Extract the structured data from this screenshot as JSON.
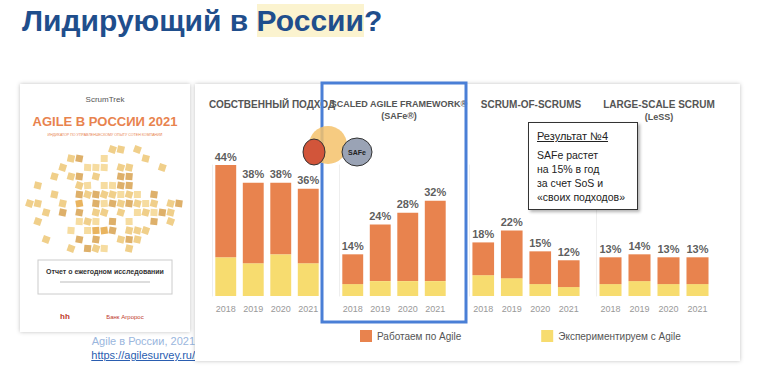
{
  "slide": {
    "title": "Лидирующий в России?",
    "title_highlight": "России",
    "cover": {
      "brand": "ScrumTrek",
      "heading": "AGILE В РОССИИ 2021",
      "tagline": "ИНДИКАТОР ПО УПРАВЛЕНЧЕСКОМУ ОПЫТУ СОТЕН КОМПАНИЙ",
      "report": "Отчет о ежегодном исследовании",
      "sponsors": [
        "hh",
        "Банк Агророс"
      ]
    },
    "caption": "Agile в России, 2021",
    "link": "https://agilesurvey.ru/",
    "callout": {
      "heading": "Результат №4",
      "lines": [
        "SAFe растет",
        "на 15% в год",
        "за счет SoS и",
        "«своих подходов»"
      ]
    },
    "badge": "SAFe"
  },
  "chart_data": [
    {
      "type": "bar",
      "title": "СОБСТВЕННЫЙ ПОДХОД",
      "categories": [
        "2018",
        "2019",
        "2020",
        "2021"
      ],
      "series": [
        {
          "name": "Экспериментируем с Agile",
          "color": "#f7dc6f",
          "values": [
            13,
            11,
            14,
            11
          ]
        },
        {
          "name": "Работаем по Agile",
          "color": "#e8834e",
          "values": [
            31,
            27,
            24,
            25
          ]
        }
      ],
      "totals": [
        44,
        38,
        38,
        36
      ],
      "total_labels": [
        "44%",
        "38%",
        "38%",
        "36%"
      ],
      "ylim": [
        0,
        44
      ],
      "stacked": true,
      "grid": false,
      "tick_labels": "x",
      "legend": "bottom"
    },
    {
      "type": "bar",
      "title": "SCALED AGILE FRAMEWORK®",
      "subtitle": "(SAFe®)",
      "categories": [
        "2018",
        "2019",
        "2020",
        "2021"
      ],
      "series": [
        {
          "name": "Экспериментируем с Agile",
          "color": "#f7dc6f",
          "values": [
            4,
            5,
            5,
            5
          ]
        },
        {
          "name": "Работаем по Agile",
          "color": "#e8834e",
          "values": [
            10,
            19,
            23,
            27
          ]
        }
      ],
      "totals": [
        14,
        24,
        28,
        32
      ],
      "total_labels": [
        "14%",
        "24%",
        "28%",
        "32%"
      ],
      "ylim": [
        0,
        44
      ],
      "stacked": true,
      "grid": false,
      "tick_labels": "x",
      "legend": "bottom"
    },
    {
      "type": "bar",
      "title": "SCRUM-OF-SCRUMS",
      "categories": [
        "2018",
        "2019",
        "2020",
        "2021"
      ],
      "series": [
        {
          "name": "Экспериментируем с Agile",
          "color": "#f7dc6f",
          "values": [
            7,
            6,
            4,
            3
          ]
        },
        {
          "name": "Работаем по Agile",
          "color": "#e8834e",
          "values": [
            11,
            16,
            11,
            9
          ]
        }
      ],
      "totals": [
        18,
        22,
        15,
        12
      ],
      "total_labels": [
        "18%",
        "22%",
        "15%",
        "12%"
      ],
      "ylim": [
        0,
        44
      ],
      "stacked": true,
      "grid": false,
      "tick_labels": "x",
      "legend": "bottom"
    },
    {
      "type": "bar",
      "title": "LARGE-SCALE SCRUM",
      "subtitle": "(LeSS)",
      "categories": [
        "2018",
        "2019",
        "2020",
        "2021"
      ],
      "series": [
        {
          "name": "Экспериментируем с Agile",
          "color": "#f7dc6f",
          "values": [
            4,
            5,
            4,
            4
          ]
        },
        {
          "name": "Работаем по Agile",
          "color": "#e8834e",
          "values": [
            9,
            9,
            9,
            9
          ]
        }
      ],
      "totals": [
        13,
        14,
        13,
        13
      ],
      "total_labels": [
        "13%",
        "14%",
        "13%",
        "13%"
      ],
      "ylim": [
        0,
        44
      ],
      "stacked": true,
      "grid": false,
      "tick_labels": "x",
      "legend": "bottom"
    }
  ]
}
